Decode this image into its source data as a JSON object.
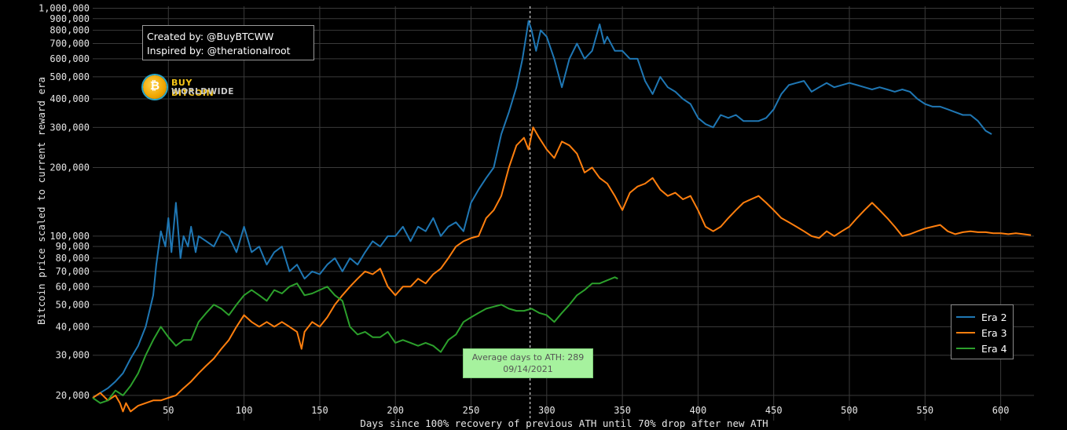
{
  "colors": {
    "background": "#000000",
    "grid": "#3a3a3a",
    "era2": "#1f77b4",
    "era3": "#ff7f0e",
    "era4": "#2ca02c",
    "annotation_bg": "#a6f29e"
  },
  "credits": {
    "line1": "Created by: @BuyBTCWW",
    "line2": "Inspired by: @therationalroot"
  },
  "brand": {
    "name_line1": "BUY BITCOIN",
    "name_line2": "WORLDWIDE",
    "icon": "bitcoin-coin-icon"
  },
  "annotation": {
    "line1": "Average days to ATH: 289",
    "line2": "09/14/2021"
  },
  "legend": {
    "items": [
      {
        "label": "Era 2"
      },
      {
        "label": "Era 3"
      },
      {
        "label": "Era 4"
      }
    ]
  },
  "chart_data": {
    "type": "line",
    "xlabel": "Days since 100% recovery of previous ATH until 70% drop after new ATH",
    "ylabel": "Bitcoin price scaled to current reward era",
    "y_scale": "log",
    "xlim": [
      0,
      622
    ],
    "ylim": [
      15500,
      1020000
    ],
    "grid": true,
    "legend_position": "bottom-right",
    "x_ticks": [
      50,
      100,
      150,
      200,
      250,
      300,
      350,
      400,
      450,
      500,
      550,
      600
    ],
    "y_ticks": [
      {
        "value": 20000,
        "label": "20,000"
      },
      {
        "value": 30000,
        "label": "30,000"
      },
      {
        "value": 40000,
        "label": "40,000"
      },
      {
        "value": 50000,
        "label": "50,000"
      },
      {
        "value": 60000,
        "label": "60,000"
      },
      {
        "value": 70000,
        "label": "70,000"
      },
      {
        "value": 80000,
        "label": "80,000"
      },
      {
        "value": 90000,
        "label": "90,000"
      },
      {
        "value": 100000,
        "label": "100,000"
      },
      {
        "value": 200000,
        "label": "200,000"
      },
      {
        "value": 300000,
        "label": "300,000"
      },
      {
        "value": 400000,
        "label": "400,000"
      },
      {
        "value": 500000,
        "label": "500,000"
      },
      {
        "value": 600000,
        "label": "600,000"
      },
      {
        "value": 700000,
        "label": "700,000"
      },
      {
        "value": 800000,
        "label": "800,000"
      },
      {
        "value": 900000,
        "label": "900,000"
      },
      {
        "value": 1000000,
        "label": "1,000,000"
      }
    ],
    "vertical_marker_x": 289,
    "series": [
      {
        "name": "Era 2",
        "color": "#1f77b4",
        "x": [
          0,
          5,
          10,
          15,
          20,
          25,
          30,
          35,
          40,
          42,
          45,
          48,
          50,
          52,
          55,
          58,
          60,
          63,
          65,
          68,
          70,
          75,
          80,
          85,
          90,
          95,
          100,
          105,
          110,
          115,
          120,
          125,
          130,
          135,
          140,
          145,
          150,
          155,
          160,
          165,
          170,
          175,
          180,
          185,
          190,
          195,
          200,
          205,
          210,
          215,
          220,
          225,
          230,
          235,
          240,
          245,
          250,
          255,
          260,
          265,
          270,
          275,
          280,
          284,
          288,
          290,
          293,
          296,
          300,
          305,
          310,
          315,
          320,
          325,
          330,
          335,
          338,
          340,
          345,
          350,
          355,
          360,
          365,
          370,
          375,
          380,
          385,
          390,
          395,
          400,
          405,
          410,
          415,
          420,
          425,
          430,
          435,
          440,
          445,
          450,
          455,
          460,
          465,
          470,
          475,
          480,
          485,
          490,
          495,
          500,
          505,
          510,
          515,
          520,
          525,
          530,
          535,
          540,
          545,
          550,
          555,
          560,
          565,
          570,
          575,
          580,
          585,
          590,
          594
        ],
        "values": [
          19500,
          20500,
          21500,
          23000,
          25000,
          29000,
          33000,
          40000,
          55000,
          75000,
          105000,
          90000,
          120000,
          85000,
          140000,
          80000,
          100000,
          90000,
          110000,
          85000,
          100000,
          95000,
          90000,
          105000,
          100000,
          85000,
          110000,
          85000,
          90000,
          75000,
          85000,
          90000,
          70000,
          75000,
          65000,
          70000,
          68000,
          75000,
          80000,
          70000,
          80000,
          75000,
          85000,
          95000,
          90000,
          100000,
          100000,
          110000,
          95000,
          110000,
          105000,
          120000,
          100000,
          110000,
          115000,
          105000,
          140000,
          160000,
          180000,
          200000,
          280000,
          350000,
          450000,
          600000,
          880000,
          800000,
          650000,
          800000,
          750000,
          600000,
          450000,
          600000,
          700000,
          600000,
          650000,
          850000,
          700000,
          750000,
          650000,
          650000,
          600000,
          600000,
          480000,
          420000,
          500000,
          450000,
          430000,
          400000,
          380000,
          330000,
          310000,
          300000,
          340000,
          330000,
          340000,
          320000,
          320000,
          320000,
          330000,
          360000,
          420000,
          460000,
          470000,
          480000,
          430000,
          450000,
          470000,
          450000,
          460000,
          470000,
          460000,
          450000,
          440000,
          450000,
          440000,
          430000,
          440000,
          430000,
          400000,
          380000,
          370000,
          370000,
          360000,
          350000,
          340000,
          340000,
          320000,
          290000,
          280000
        ]
      },
      {
        "name": "Era 3",
        "color": "#ff7f0e",
        "x": [
          0,
          5,
          10,
          15,
          18,
          20,
          22,
          25,
          30,
          35,
          40,
          45,
          50,
          55,
          60,
          65,
          70,
          75,
          80,
          85,
          90,
          95,
          100,
          105,
          110,
          115,
          120,
          125,
          130,
          135,
          138,
          140,
          145,
          150,
          155,
          160,
          165,
          170,
          175,
          180,
          185,
          190,
          195,
          200,
          205,
          210,
          215,
          220,
          225,
          230,
          235,
          240,
          245,
          250,
          255,
          260,
          265,
          270,
          275,
          280,
          285,
          288,
          291,
          295,
          300,
          305,
          310,
          315,
          320,
          325,
          330,
          335,
          340,
          345,
          350,
          355,
          360,
          365,
          370,
          375,
          380,
          385,
          390,
          395,
          400,
          405,
          410,
          415,
          420,
          425,
          430,
          435,
          440,
          445,
          450,
          455,
          460,
          465,
          470,
          475,
          480,
          485,
          490,
          495,
          500,
          505,
          510,
          515,
          520,
          525,
          530,
          535,
          540,
          545,
          550,
          555,
          560,
          565,
          570,
          575,
          580,
          585,
          590,
          595,
          600,
          605,
          610,
          615,
          620
        ],
        "values": [
          19500,
          20500,
          19000,
          20000,
          18500,
          17000,
          18500,
          17000,
          18000,
          18500,
          19000,
          19000,
          19500,
          20000,
          21500,
          23000,
          25000,
          27000,
          29000,
          32000,
          35000,
          40000,
          45000,
          42000,
          40000,
          42000,
          40000,
          42000,
          40000,
          38000,
          32000,
          38000,
          42000,
          40000,
          44000,
          50000,
          55000,
          60000,
          65000,
          70000,
          68000,
          72000,
          60000,
          55000,
          60000,
          60000,
          65000,
          62000,
          68000,
          72000,
          80000,
          90000,
          95000,
          98000,
          100000,
          120000,
          130000,
          150000,
          200000,
          250000,
          270000,
          240000,
          300000,
          270000,
          240000,
          220000,
          260000,
          250000,
          230000,
          190000,
          200000,
          180000,
          170000,
          150000,
          130000,
          155000,
          165000,
          170000,
          180000,
          160000,
          150000,
          155000,
          145000,
          150000,
          130000,
          110000,
          105000,
          110000,
          120000,
          130000,
          140000,
          145000,
          150000,
          140000,
          130000,
          120000,
          115000,
          110000,
          105000,
          100000,
          98000,
          105000,
          100000,
          105000,
          110000,
          120000,
          130000,
          140000,
          130000,
          120000,
          110000,
          100000,
          102000,
          105000,
          108000,
          110000,
          112000,
          105000,
          102000,
          104000,
          105000,
          104000,
          104000,
          103000,
          103000,
          102000,
          103000,
          102000,
          101000
        ]
      },
      {
        "name": "Era 4",
        "color": "#2ca02c",
        "x": [
          0,
          5,
          10,
          15,
          20,
          25,
          30,
          35,
          40,
          45,
          50,
          55,
          60,
          65,
          70,
          75,
          80,
          85,
          90,
          95,
          100,
          105,
          110,
          115,
          120,
          125,
          130,
          135,
          140,
          145,
          150,
          155,
          160,
          165,
          170,
          175,
          180,
          185,
          190,
          195,
          200,
          205,
          210,
          215,
          220,
          225,
          230,
          235,
          240,
          245,
          250,
          255,
          260,
          265,
          270,
          275,
          280,
          285,
          290,
          295,
          300,
          305,
          310,
          315,
          320,
          325,
          330,
          335,
          340,
          345,
          347
        ],
        "values": [
          19500,
          18500,
          19000,
          21000,
          20000,
          22000,
          25000,
          30000,
          35000,
          40000,
          36000,
          33000,
          35000,
          35000,
          42000,
          46000,
          50000,
          48000,
          45000,
          50000,
          55000,
          58000,
          55000,
          52000,
          58000,
          56000,
          60000,
          62000,
          55000,
          56000,
          58000,
          60000,
          55000,
          52000,
          40000,
          37000,
          38000,
          36000,
          36000,
          38000,
          34000,
          35000,
          34000,
          33000,
          34000,
          33000,
          31000,
          35000,
          37000,
          42000,
          44000,
          46000,
          48000,
          49000,
          50000,
          48000,
          47000,
          47000,
          48000,
          46000,
          45000,
          42000,
          46000,
          50000,
          55000,
          58000,
          62000,
          62000,
          64000,
          66000,
          65000
        ]
      }
    ]
  }
}
